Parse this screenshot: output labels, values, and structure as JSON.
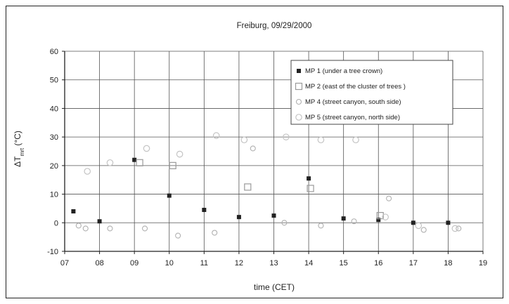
{
  "chart_data": {
    "type": "scatter",
    "title": "Freiburg, 09/29/2000",
    "xlabel": "time   (CET)",
    "ylabel": "ΔT",
    "ylabel_sub": "mrt",
    "ylabel_unit": "  (°C)",
    "xlim": [
      7,
      19
    ],
    "ylim": [
      -10,
      60
    ],
    "grid": true,
    "legend_position": "top-right",
    "x_tick_labels": [
      "07",
      "08",
      "09",
      "10",
      "11",
      "12",
      "13",
      "14",
      "15",
      "16",
      "17",
      "18",
      "19"
    ],
    "y_ticks": [
      -10,
      0,
      10,
      20,
      30,
      40,
      50,
      60
    ],
    "series": [
      {
        "name": "MP 1 (under a tree crown)",
        "marker": "filled-square",
        "x": [
          7.25,
          8.0,
          9.0,
          10.0,
          11.0,
          12.0,
          13.0,
          14.0,
          15.0,
          16.0,
          17.0,
          18.0
        ],
        "y": [
          4,
          0.5,
          22,
          9.5,
          4.5,
          2,
          2.5,
          15.5,
          1.5,
          1,
          0,
          0
        ]
      },
      {
        "name": "MP 2 (east of the cluster of trees )",
        "marker": "open-square",
        "x": [
          9.15,
          10.1,
          12.25,
          14.05,
          16.05
        ],
        "y": [
          21,
          20,
          12.5,
          12,
          2.5
        ]
      },
      {
        "name": "MP 4 (street canyon, south side)",
        "marker": "open-circle",
        "x": [
          7.4,
          7.6,
          8.3,
          9.3,
          10.25,
          11.3,
          12.4,
          13.3,
          14.35,
          15.3,
          16.3,
          17.3,
          18.3
        ],
        "y": [
          -1,
          -2,
          -2,
          -2,
          -4.5,
          -3.5,
          26,
          0,
          -1,
          0.5,
          8.5,
          -2.5,
          -2
        ]
      },
      {
        "name": "MP 5 (street canyon, north side)",
        "marker": "open-circle-large",
        "x": [
          7.65,
          8.3,
          9.35,
          10.3,
          11.35,
          12.15,
          13.35,
          14.35,
          15.35,
          16.2,
          17.15,
          18.2
        ],
        "y": [
          18,
          21,
          26,
          24,
          30.5,
          29,
          30,
          29,
          29,
          2,
          -1,
          -2
        ]
      }
    ]
  },
  "colors": {
    "axis": "#222222",
    "grid": "#555555",
    "mp1": "#222222",
    "mp2": "#9a9a9a",
    "mp4": "#b0b0b0",
    "mp5": "#c4c4c4"
  }
}
